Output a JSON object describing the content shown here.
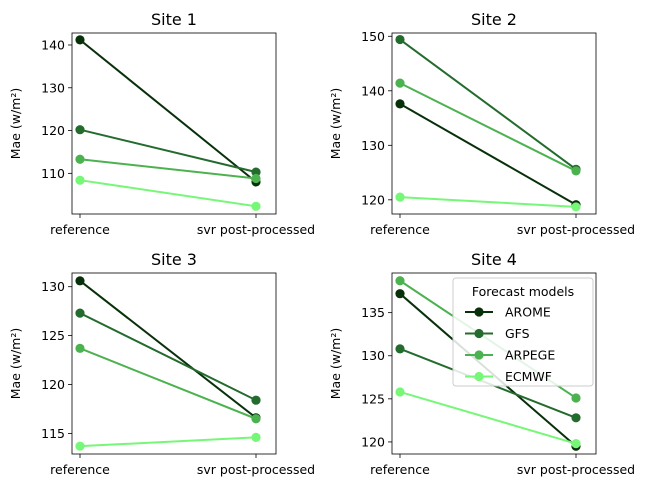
{
  "chart_data": [
    {
      "type": "line",
      "title": "Site 1",
      "ylabel": "Mae (w/m²)",
      "categories": [
        "reference",
        "svr post-processed"
      ],
      "ylim": [
        100.5,
        142.8
      ],
      "yticks": [
        110,
        120,
        130,
        140
      ],
      "series": [
        {
          "name": "AROME",
          "values": [
            141.2,
            108.0
          ]
        },
        {
          "name": "GFS",
          "values": [
            120.2,
            110.3
          ]
        },
        {
          "name": "ARPEGE",
          "values": [
            113.3,
            108.8
          ]
        },
        {
          "name": "ECMWF",
          "values": [
            108.4,
            102.3
          ]
        }
      ]
    },
    {
      "type": "line",
      "title": "Site 2",
      "ylabel": "Mae (w/m²)",
      "categories": [
        "reference",
        "svr post-processed"
      ],
      "ylim": [
        117.4,
        150.6
      ],
      "yticks": [
        120,
        130,
        140,
        150
      ],
      "series": [
        {
          "name": "AROME",
          "values": [
            137.6,
            119.1
          ]
        },
        {
          "name": "GFS",
          "values": [
            149.4,
            125.6
          ]
        },
        {
          "name": "ARPEGE",
          "values": [
            141.4,
            125.3
          ]
        },
        {
          "name": "ECMWF",
          "values": [
            120.5,
            118.7
          ]
        }
      ]
    },
    {
      "type": "line",
      "title": "Site 3",
      "ylabel": "Mae (w/m²)",
      "categories": [
        "reference",
        "svr post-processed"
      ],
      "ylim": [
        112.9,
        131.4
      ],
      "yticks": [
        115,
        120,
        125,
        130
      ],
      "series": [
        {
          "name": "AROME",
          "values": [
            130.6,
            116.6
          ]
        },
        {
          "name": "GFS",
          "values": [
            127.3,
            118.4
          ]
        },
        {
          "name": "ARPEGE",
          "values": [
            123.7,
            116.5
          ]
        },
        {
          "name": "ECMWF",
          "values": [
            113.7,
            114.6
          ]
        }
      ]
    },
    {
      "type": "line",
      "title": "Site 4",
      "ylabel": "Mae (w/m²)",
      "categories": [
        "reference",
        "svr post-processed"
      ],
      "ylim": [
        118.6,
        139.6
      ],
      "yticks": [
        120,
        125,
        130,
        135
      ],
      "series": [
        {
          "name": "AROME",
          "values": [
            137.2,
            119.5
          ]
        },
        {
          "name": "GFS",
          "values": [
            130.8,
            122.8
          ]
        },
        {
          "name": "ARPEGE",
          "values": [
            138.7,
            125.1
          ]
        },
        {
          "name": "ECMWF",
          "values": [
            125.8,
            119.8
          ]
        }
      ],
      "legend": {
        "title": "Forecast models",
        "placement": "top-right",
        "entries": [
          "AROME",
          "GFS",
          "ARPEGE",
          "ECMWF"
        ]
      }
    }
  ],
  "colors": {
    "AROME": "#08300a",
    "GFS": "#246b2e",
    "ARPEGE": "#4cb24f",
    "ECMWF": "#77f777"
  }
}
